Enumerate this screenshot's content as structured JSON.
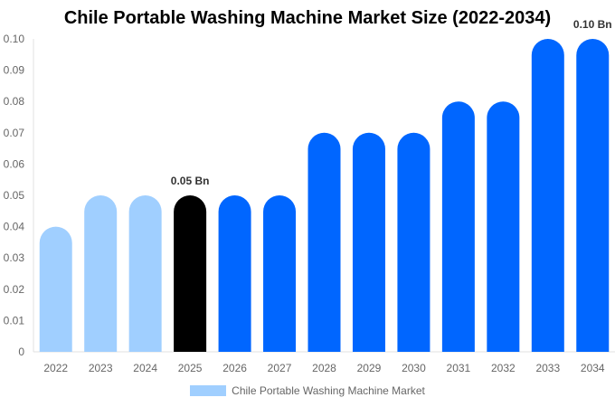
{
  "chart_data": {
    "type": "bar",
    "title": "Chile Portable Washing Machine Market Size (2022-2034)",
    "categories": [
      "2022",
      "2023",
      "2024",
      "2025",
      "2026",
      "2027",
      "2028",
      "2029",
      "2030",
      "2031",
      "2032",
      "2033",
      "2034"
    ],
    "series": [
      {
        "name": "Chile Portable Washing Machine Market",
        "values": [
          0.04,
          0.05,
          0.05,
          0.05,
          0.05,
          0.05,
          0.07,
          0.07,
          0.07,
          0.08,
          0.08,
          0.1,
          0.1
        ]
      }
    ],
    "bar_colors": [
      "#a0cfff",
      "#a0cfff",
      "#a0cfff",
      "#000000",
      "#0066ff",
      "#0066ff",
      "#0066ff",
      "#0066ff",
      "#0066ff",
      "#0066ff",
      "#0066ff",
      "#0066ff",
      "#0066ff"
    ],
    "data_labels": [
      {
        "category": "2025",
        "text": "0.05 Bn"
      },
      {
        "category": "2034",
        "text": "0.10 Bn"
      }
    ],
    "yticks": [
      "0",
      "0.01",
      "0.02",
      "0.03",
      "0.04",
      "0.05",
      "0.06",
      "0.07",
      "0.08",
      "0.09",
      "0.10"
    ],
    "ylim": [
      0,
      0.1
    ],
    "xlabel": "",
    "ylabel": "",
    "grid": false,
    "legend": "bottom"
  }
}
